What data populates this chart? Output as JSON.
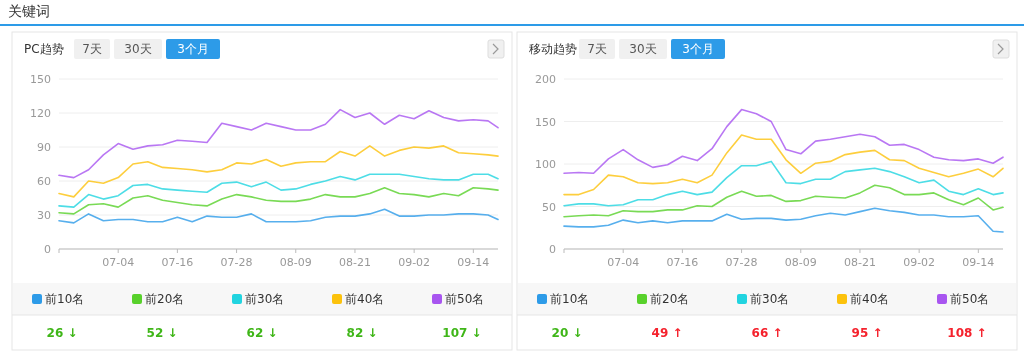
{
  "chart_data": [
    {
      "type": "other",
      "title": "关键词"
    },
    {
      "type": "line",
      "title": "PC趋势",
      "grid": "y",
      "legend": "bottom",
      "marker": "none",
      "line_style": "solid",
      "x": [
        "--06-22",
        "--06-25",
        "--06-28",
        "--07-01",
        "--07-04",
        "--07-07",
        "--07-10",
        "--07-13",
        "--07-16",
        "--07-19",
        "--07-22",
        "--07-25",
        "--07-28",
        "--07-31",
        "--08-03",
        "--08-06",
        "--08-09",
        "--08-12",
        "--08-15",
        "--08-18",
        "--08-21",
        "--08-24",
        "--08-27",
        "--08-30",
        "--09-02",
        "--09-05",
        "--09-08",
        "--09-11",
        "--09-14",
        "--09-17",
        "--09-19"
      ],
      "xticks": [
        {
          "value": "--07-04",
          "label": "07-04"
        },
        {
          "value": "--07-16",
          "label": "07-16"
        },
        {
          "value": "--07-28",
          "label": "07-28"
        },
        {
          "value": "--08-09",
          "label": "08-09"
        },
        {
          "value": "--08-21",
          "label": "08-21"
        },
        {
          "value": "--09-02",
          "label": "09-02"
        },
        {
          "value": "--09-14",
          "label": "09-14"
        }
      ],
      "xlim": [
        "--06-22",
        "--09-19"
      ],
      "ylim": [
        0,
        150
      ],
      "yticks": [
        0,
        30,
        60,
        90,
        120,
        150
      ],
      "series": [
        {
          "name": "前10名",
          "color": "#2d9be8",
          "values": [
            25,
            23,
            31,
            25,
            26,
            26,
            24,
            24,
            28,
            24,
            29,
            28,
            28,
            31,
            24,
            24,
            24,
            25,
            28,
            29,
            29,
            31,
            35,
            29,
            29,
            30,
            30,
            31,
            31,
            30,
            26
          ]
        },
        {
          "name": "前20名",
          "color": "#58d12b",
          "values": [
            32,
            31,
            39,
            40,
            37,
            45,
            47,
            43,
            41,
            39,
            38,
            44,
            48,
            46,
            43,
            42,
            42,
            44,
            48,
            46,
            46,
            49,
            54,
            49,
            48,
            46,
            49,
            47,
            54,
            53,
            52
          ]
        },
        {
          "name": "前30名",
          "color": "#21d4e0",
          "values": [
            38,
            37,
            48,
            44,
            47,
            56,
            57,
            53,
            52,
            51,
            50,
            58,
            59,
            55,
            59,
            52,
            53,
            57,
            60,
            64,
            61,
            66,
            66,
            66,
            64,
            62,
            61,
            61,
            66,
            66,
            62
          ]
        },
        {
          "name": "前40名",
          "color": "#fcc20c",
          "values": [
            49,
            46,
            60,
            58,
            63,
            75,
            77,
            72,
            71,
            70,
            68,
            70,
            76,
            75,
            79,
            73,
            76,
            77,
            77,
            86,
            82,
            91,
            82,
            87,
            90,
            89,
            91,
            85,
            84,
            83,
            82
          ]
        },
        {
          "name": "前50名",
          "color": "#a855f0",
          "values": [
            65,
            63,
            70,
            83,
            93,
            88,
            91,
            92,
            96,
            95,
            94,
            111,
            108,
            105,
            111,
            108,
            105,
            105,
            110,
            123,
            116,
            120,
            110,
            118,
            115,
            122,
            116,
            113,
            114,
            113,
            107
          ]
        }
      ],
      "annotations": [
        "7天",
        "30天",
        "3个月",
        "26 ↓",
        "52 ↓",
        "62 ↓",
        "82 ↓",
        "107 ↓"
      ]
    },
    {
      "type": "line",
      "title": "移动趋势",
      "grid": "y",
      "legend": "bottom",
      "marker": "none",
      "line_style": "solid",
      "x": [
        "--06-22",
        "--06-25",
        "--06-28",
        "--07-01",
        "--07-04",
        "--07-07",
        "--07-10",
        "--07-13",
        "--07-16",
        "--07-19",
        "--07-22",
        "--07-25",
        "--07-28",
        "--07-31",
        "--08-03",
        "--08-06",
        "--08-09",
        "--08-12",
        "--08-15",
        "--08-18",
        "--08-21",
        "--08-24",
        "--08-27",
        "--08-30",
        "--09-02",
        "--09-05",
        "--09-08",
        "--09-11",
        "--09-14",
        "--09-17",
        "--09-19"
      ],
      "xticks": [
        {
          "value": "--07-04",
          "label": "07-04"
        },
        {
          "value": "--07-16",
          "label": "07-16"
        },
        {
          "value": "--07-28",
          "label": "07-28"
        },
        {
          "value": "--08-09",
          "label": "08-09"
        },
        {
          "value": "--08-21",
          "label": "08-21"
        },
        {
          "value": "--09-02",
          "label": "09-02"
        },
        {
          "value": "--09-14",
          "label": "09-14"
        }
      ],
      "xlim": [
        "--06-22",
        "--09-19"
      ],
      "ylim": [
        0,
        200
      ],
      "yticks": [
        0,
        50,
        100,
        150,
        200
      ],
      "series": [
        {
          "name": "前10名",
          "color": "#2d9be8",
          "values": [
            27,
            26,
            26,
            28,
            34,
            31,
            33,
            31,
            33,
            33,
            33,
            41,
            35,
            36,
            36,
            34,
            35,
            39,
            42,
            40,
            44,
            48,
            45,
            43,
            40,
            40,
            38,
            38,
            39,
            21,
            20
          ]
        },
        {
          "name": "前20名",
          "color": "#58d12b",
          "values": [
            38,
            39,
            40,
            39,
            45,
            44,
            44,
            46,
            46,
            51,
            50,
            61,
            68,
            62,
            63,
            56,
            57,
            62,
            61,
            60,
            66,
            75,
            72,
            64,
            64,
            66,
            58,
            52,
            60,
            46,
            49
          ]
        },
        {
          "name": "前30名",
          "color": "#21d4e0",
          "values": [
            51,
            53,
            53,
            51,
            52,
            58,
            58,
            64,
            68,
            64,
            67,
            84,
            98,
            98,
            103,
            78,
            77,
            82,
            82,
            91,
            93,
            95,
            91,
            85,
            78,
            81,
            68,
            64,
            71,
            64,
            66
          ]
        },
        {
          "name": "前40名",
          "color": "#fcc20c",
          "values": [
            64,
            64,
            70,
            87,
            85,
            78,
            77,
            78,
            82,
            78,
            87,
            113,
            134,
            129,
            129,
            105,
            89,
            101,
            103,
            111,
            114,
            116,
            105,
            104,
            95,
            90,
            85,
            89,
            94,
            85,
            95
          ]
        },
        {
          "name": "前50名",
          "color": "#a855f0",
          "values": [
            89,
            90,
            89,
            106,
            117,
            105,
            96,
            99,
            109,
            104,
            118,
            144,
            164,
            159,
            150,
            117,
            112,
            127,
            129,
            132,
            135,
            132,
            122,
            123,
            117,
            108,
            105,
            104,
            106,
            101,
            108
          ]
        }
      ],
      "annotations": [
        "7天",
        "30天",
        "3个月",
        "20 ↓",
        "49 ↑",
        "66 ↑",
        "95 ↑",
        "108 ↑"
      ]
    }
  ]
}
